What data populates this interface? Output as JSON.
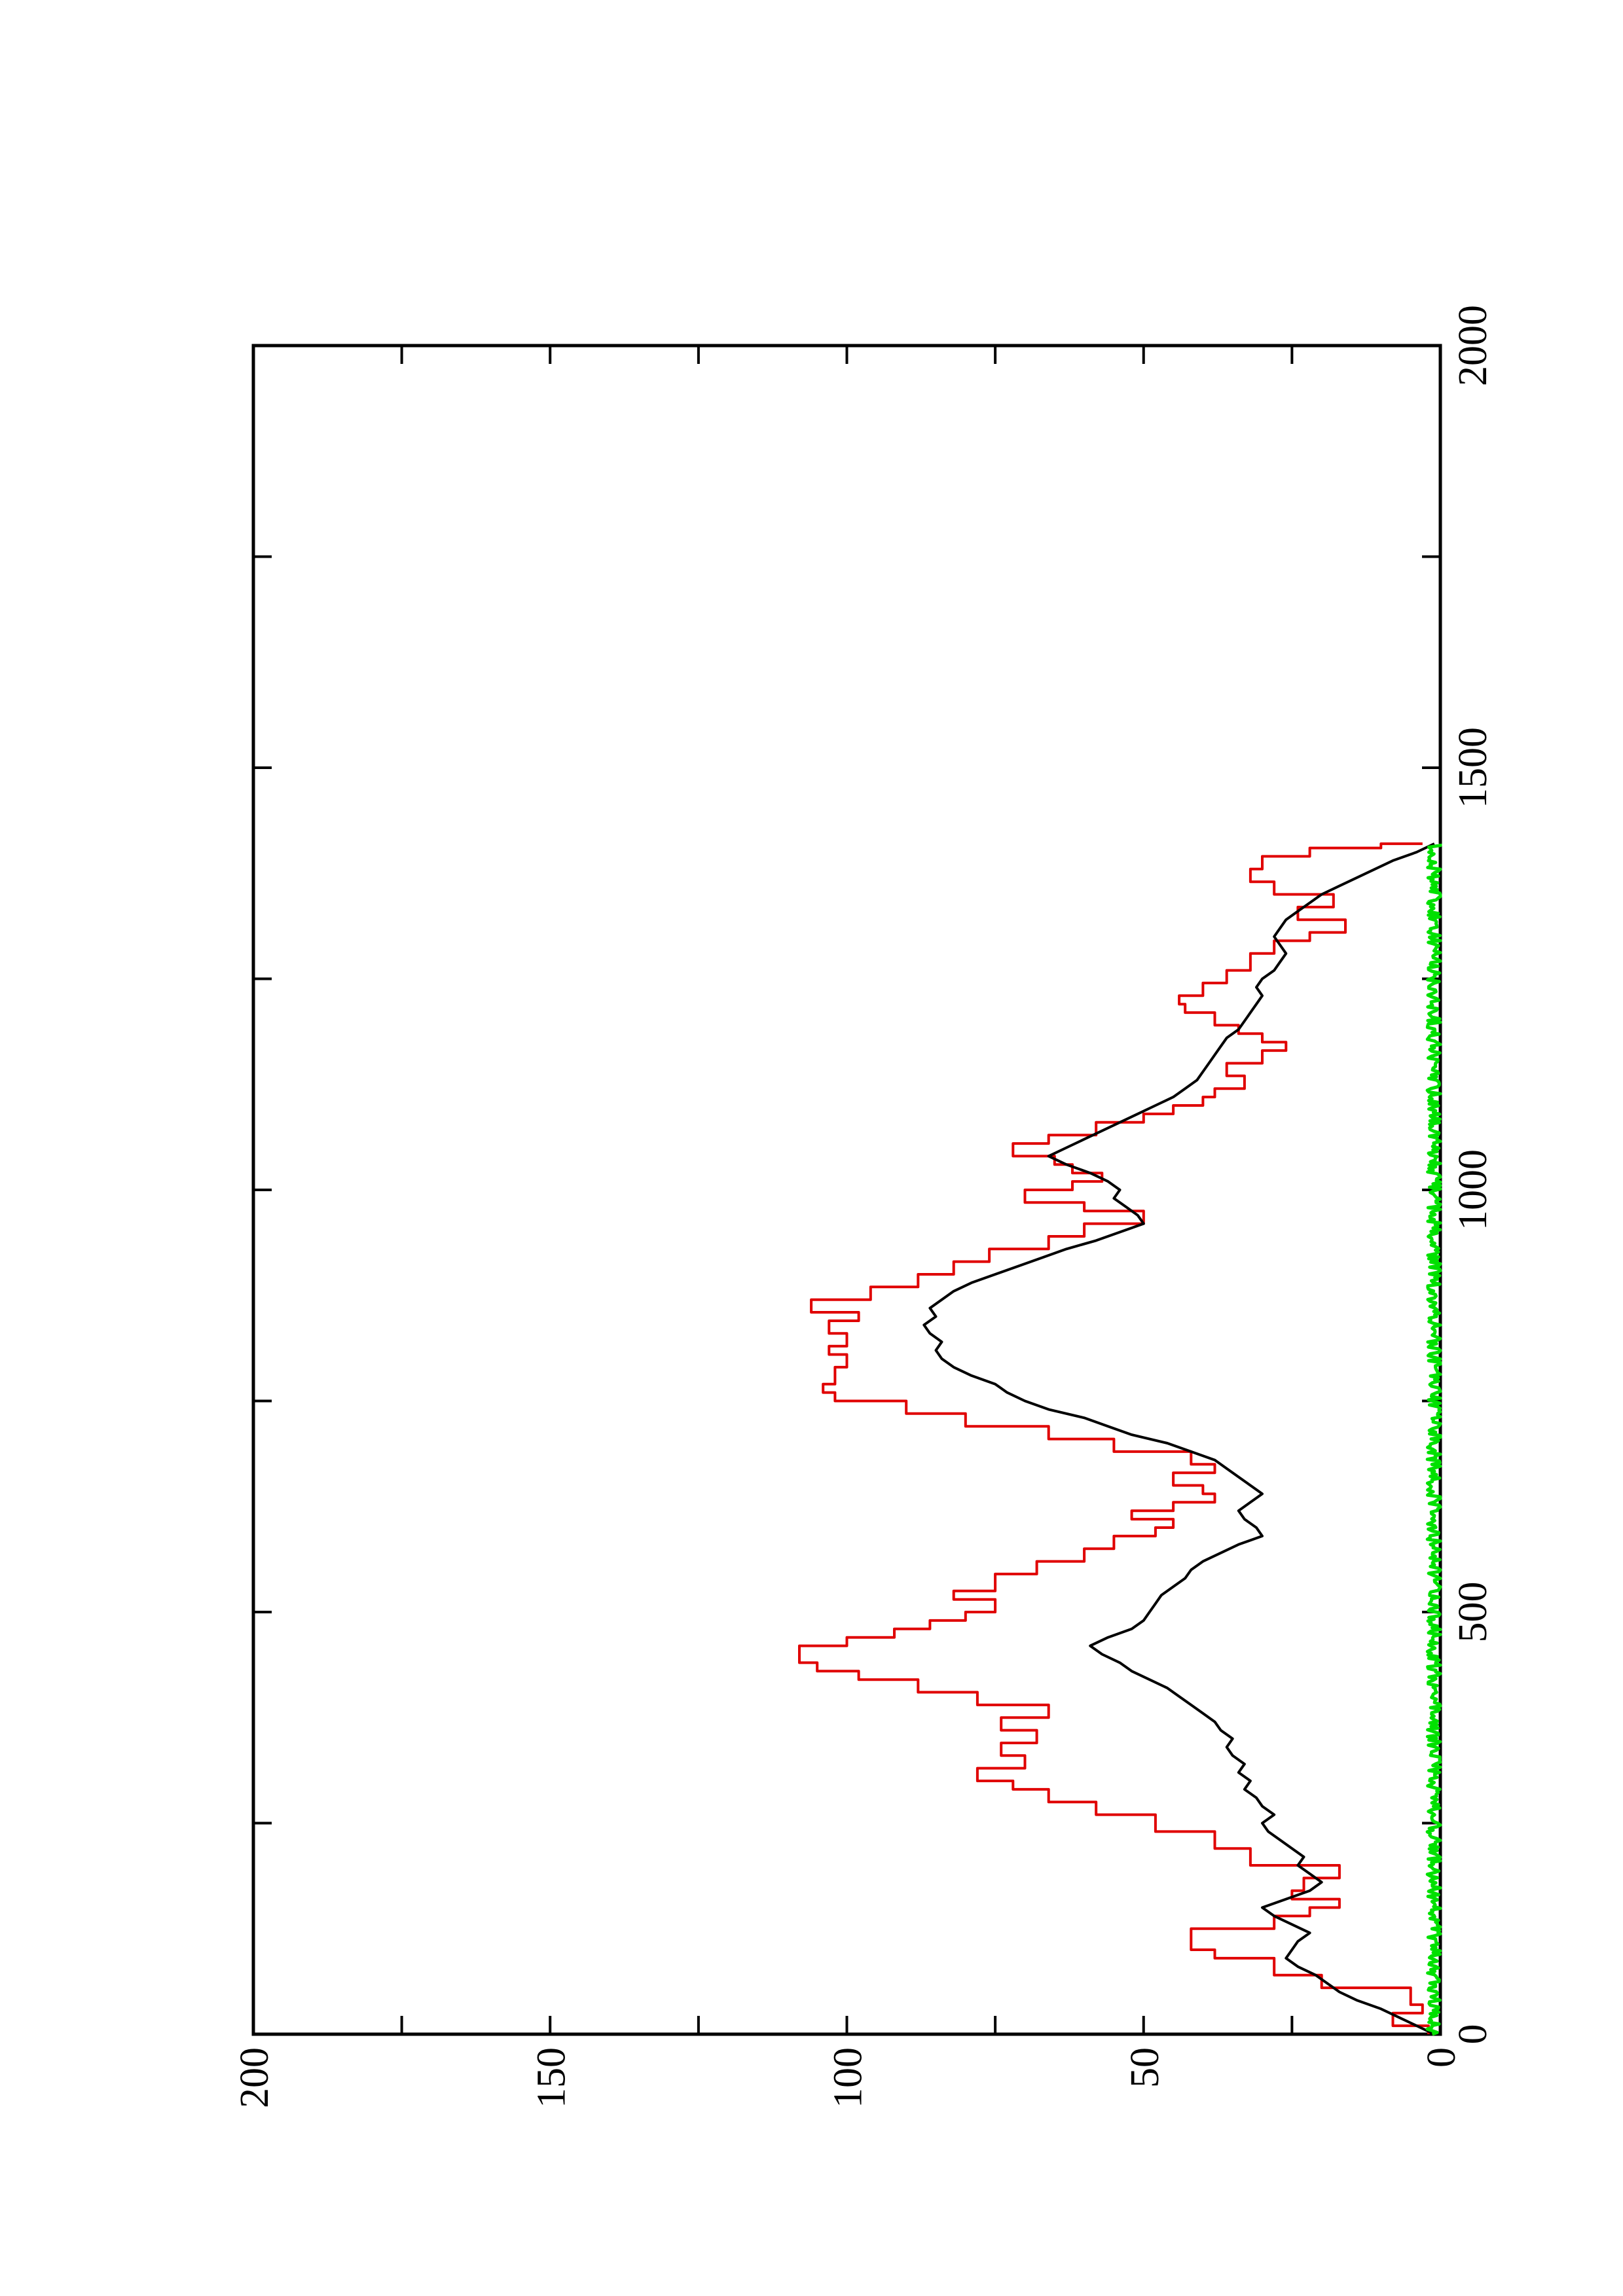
{
  "chart_data": {
    "type": "line",
    "orientation": "rotated-90-ccw",
    "title": "",
    "xlabel": "",
    "ylabel": "",
    "xlim": [
      0,
      2000
    ],
    "ylim": [
      0,
      200
    ],
    "x_ticks": [
      0,
      500,
      1000,
      1500,
      2000
    ],
    "x_tick_labels": [
      "0",
      "500",
      "1000",
      "1500",
      "2000"
    ],
    "x_minor_ticks": [
      250,
      750,
      1250,
      1750
    ],
    "y_ticks": [
      0,
      50,
      100,
      150,
      200
    ],
    "y_tick_labels": [
      "0",
      "50",
      "100",
      "150",
      "200"
    ],
    "y_minor_ticks": [
      25,
      75,
      125,
      175
    ],
    "grid": false,
    "legend": "none",
    "colors": {
      "red": "#e00000",
      "black": "#000000",
      "green": "#00e000",
      "axis": "#000000"
    },
    "series": [
      {
        "color": "#e00000",
        "style": "step",
        "points": [
          [
            0,
            2
          ],
          [
            10,
            8
          ],
          [
            25,
            3
          ],
          [
            35,
            5
          ],
          [
            55,
            20
          ],
          [
            70,
            28
          ],
          [
            90,
            38
          ],
          [
            100,
            42
          ],
          [
            125,
            28
          ],
          [
            140,
            22
          ],
          [
            150,
            17
          ],
          [
            160,
            25
          ],
          [
            170,
            23
          ],
          [
            185,
            17
          ],
          [
            200,
            32
          ],
          [
            220,
            38
          ],
          [
            240,
            48
          ],
          [
            260,
            58
          ],
          [
            275,
            66
          ],
          [
            290,
            72
          ],
          [
            300,
            78
          ],
          [
            315,
            70
          ],
          [
            330,
            74
          ],
          [
            345,
            68
          ],
          [
            360,
            74
          ],
          [
            375,
            66
          ],
          [
            390,
            78
          ],
          [
            405,
            88
          ],
          [
            420,
            98
          ],
          [
            430,
            105
          ],
          [
            440,
            108
          ],
          [
            460,
            100
          ],
          [
            470,
            92
          ],
          [
            480,
            86
          ],
          [
            490,
            80
          ],
          [
            500,
            75
          ],
          [
            515,
            82
          ],
          [
            525,
            75
          ],
          [
            545,
            68
          ],
          [
            560,
            60
          ],
          [
            575,
            55
          ],
          [
            590,
            48
          ],
          [
            600,
            45
          ],
          [
            610,
            52
          ],
          [
            620,
            45
          ],
          [
            630,
            38
          ],
          [
            640,
            40
          ],
          [
            650,
            45
          ],
          [
            665,
            38
          ],
          [
            675,
            42
          ],
          [
            690,
            55
          ],
          [
            705,
            66
          ],
          [
            720,
            80
          ],
          [
            735,
            90
          ],
          [
            750,
            102
          ],
          [
            760,
            104
          ],
          [
            770,
            102
          ],
          [
            790,
            100
          ],
          [
            805,
            103
          ],
          [
            815,
            100
          ],
          [
            830,
            103
          ],
          [
            845,
            98
          ],
          [
            855,
            106
          ],
          [
            870,
            96
          ],
          [
            885,
            88
          ],
          [
            900,
            82
          ],
          [
            915,
            76
          ],
          [
            930,
            66
          ],
          [
            945,
            60
          ],
          [
            960,
            50
          ],
          [
            975,
            60
          ],
          [
            985,
            70
          ],
          [
            1000,
            62
          ],
          [
            1010,
            57
          ],
          [
            1020,
            62
          ],
          [
            1030,
            65
          ],
          [
            1040,
            72
          ],
          [
            1055,
            66
          ],
          [
            1065,
            58
          ],
          [
            1080,
            50
          ],
          [
            1090,
            45
          ],
          [
            1100,
            40
          ],
          [
            1110,
            38
          ],
          [
            1120,
            33
          ],
          [
            1135,
            36
          ],
          [
            1150,
            30
          ],
          [
            1165,
            26
          ],
          [
            1175,
            30
          ],
          [
            1185,
            34
          ],
          [
            1195,
            38
          ],
          [
            1210,
            43
          ],
          [
            1220,
            44
          ],
          [
            1230,
            40
          ],
          [
            1245,
            36
          ],
          [
            1260,
            32
          ],
          [
            1280,
            28
          ],
          [
            1295,
            22
          ],
          [
            1305,
            16
          ],
          [
            1320,
            24
          ],
          [
            1335,
            18
          ],
          [
            1350,
            28
          ],
          [
            1365,
            32
          ],
          [
            1380,
            30
          ],
          [
            1395,
            22
          ],
          [
            1405,
            10
          ],
          [
            1410,
            3
          ]
        ]
      },
      {
        "color": "#000000",
        "style": "line",
        "points": [
          [
            0,
            1
          ],
          [
            10,
            4
          ],
          [
            20,
            7
          ],
          [
            30,
            10
          ],
          [
            40,
            14
          ],
          [
            50,
            17
          ],
          [
            60,
            19
          ],
          [
            70,
            21
          ],
          [
            80,
            24
          ],
          [
            90,
            26
          ],
          [
            100,
            25
          ],
          [
            110,
            24
          ],
          [
            120,
            22
          ],
          [
            130,
            25
          ],
          [
            140,
            28
          ],
          [
            150,
            30
          ],
          [
            160,
            26
          ],
          [
            170,
            22
          ],
          [
            180,
            20
          ],
          [
            190,
            22
          ],
          [
            200,
            24
          ],
          [
            210,
            23
          ],
          [
            220,
            25
          ],
          [
            230,
            27
          ],
          [
            240,
            29
          ],
          [
            250,
            30
          ],
          [
            260,
            28
          ],
          [
            270,
            30
          ],
          [
            280,
            31
          ],
          [
            290,
            33
          ],
          [
            300,
            32
          ],
          [
            310,
            34
          ],
          [
            320,
            33
          ],
          [
            330,
            35
          ],
          [
            340,
            36
          ],
          [
            350,
            35
          ],
          [
            360,
            37
          ],
          [
            370,
            38
          ],
          [
            380,
            40
          ],
          [
            390,
            42
          ],
          [
            400,
            44
          ],
          [
            410,
            46
          ],
          [
            420,
            49
          ],
          [
            430,
            52
          ],
          [
            440,
            54
          ],
          [
            450,
            57
          ],
          [
            460,
            59
          ],
          [
            470,
            56
          ],
          [
            480,
            52
          ],
          [
            490,
            50
          ],
          [
            500,
            49
          ],
          [
            510,
            48
          ],
          [
            520,
            47
          ],
          [
            530,
            45
          ],
          [
            540,
            43
          ],
          [
            550,
            42
          ],
          [
            560,
            40
          ],
          [
            570,
            37
          ],
          [
            580,
            34
          ],
          [
            590,
            30
          ],
          [
            600,
            31
          ],
          [
            610,
            33
          ],
          [
            620,
            34
          ],
          [
            630,
            32
          ],
          [
            640,
            30
          ],
          [
            650,
            32
          ],
          [
            660,
            34
          ],
          [
            670,
            36
          ],
          [
            680,
            38
          ],
          [
            690,
            42
          ],
          [
            700,
            46
          ],
          [
            710,
            52
          ],
          [
            720,
            56
          ],
          [
            730,
            60
          ],
          [
            740,
            66
          ],
          [
            750,
            70
          ],
          [
            760,
            73
          ],
          [
            770,
            75
          ],
          [
            780,
            79
          ],
          [
            790,
            82
          ],
          [
            800,
            84
          ],
          [
            810,
            85
          ],
          [
            820,
            84
          ],
          [
            830,
            86
          ],
          [
            840,
            87
          ],
          [
            850,
            85
          ],
          [
            860,
            86
          ],
          [
            870,
            84
          ],
          [
            880,
            82
          ],
          [
            890,
            79
          ],
          [
            900,
            75
          ],
          [
            910,
            71
          ],
          [
            920,
            67
          ],
          [
            930,
            63
          ],
          [
            940,
            58
          ],
          [
            950,
            54
          ],
          [
            960,
            50
          ],
          [
            970,
            51
          ],
          [
            980,
            53
          ],
          [
            990,
            55
          ],
          [
            1000,
            54
          ],
          [
            1010,
            56
          ],
          [
            1020,
            59
          ],
          [
            1030,
            63
          ],
          [
            1040,
            66
          ],
          [
            1050,
            63
          ],
          [
            1060,
            60
          ],
          [
            1070,
            57
          ],
          [
            1080,
            54
          ],
          [
            1090,
            51
          ],
          [
            1100,
            48
          ],
          [
            1110,
            45
          ],
          [
            1120,
            43
          ],
          [
            1130,
            41
          ],
          [
            1140,
            40
          ],
          [
            1150,
            39
          ],
          [
            1160,
            38
          ],
          [
            1170,
            37
          ],
          [
            1180,
            36
          ],
          [
            1190,
            34
          ],
          [
            1200,
            33
          ],
          [
            1210,
            32
          ],
          [
            1220,
            31
          ],
          [
            1230,
            30
          ],
          [
            1240,
            31
          ],
          [
            1250,
            30
          ],
          [
            1260,
            28
          ],
          [
            1270,
            27
          ],
          [
            1280,
            26
          ],
          [
            1290,
            27
          ],
          [
            1300,
            28
          ],
          [
            1310,
            27
          ],
          [
            1320,
            26
          ],
          [
            1330,
            24
          ],
          [
            1340,
            22
          ],
          [
            1350,
            20
          ],
          [
            1360,
            17
          ],
          [
            1370,
            14
          ],
          [
            1380,
            11
          ],
          [
            1390,
            8
          ],
          [
            1400,
            4
          ],
          [
            1410,
            1
          ]
        ]
      },
      {
        "color": "#00e000",
        "style": "noise",
        "x_range": [
          0,
          1410
        ],
        "level": 1,
        "amplitude": 1.2
      }
    ]
  }
}
